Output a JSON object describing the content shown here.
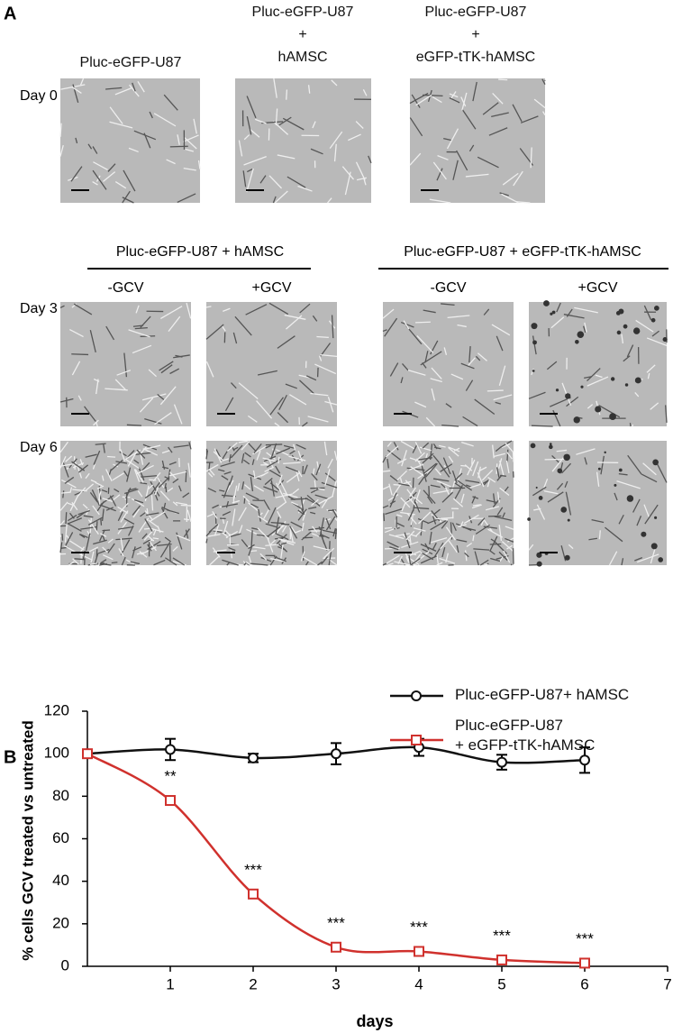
{
  "panel_a": {
    "label": "A",
    "column_headers": [
      "Pluc-eGFP-U87",
      "Pluc-eGFP-U87\n+\nhAMSC",
      "Pluc-eGFP-U87\n+\neGFP-tTK-hAMSC"
    ],
    "row0": "Day 0",
    "groups": [
      "Pluc-eGFP-U87 + hAMSC",
      "Pluc-eGFP-U87 + eGFP-tTK-hAMSC"
    ],
    "conditions": [
      "-GCV",
      "+GCV",
      "-GCV",
      "+GCV"
    ],
    "rows": [
      "Day 3",
      "Day 6"
    ]
  },
  "chart_data": {
    "type": "line",
    "panel_label": "B",
    "xlabel": "days",
    "ylabel": "% cells GCV treated vs untreated",
    "x": [
      0,
      1,
      2,
      3,
      4,
      5,
      6
    ],
    "series": [
      {
        "name": "Pluc-eGFP-U87+ hAMSC",
        "color": "#111111",
        "marker": "circle",
        "values": [
          100,
          102,
          98,
          100,
          103,
          96,
          97
        ],
        "errors": [
          0,
          5,
          2,
          5,
          4,
          3.5,
          6
        ]
      },
      {
        "name": "Pluc-eGFP-U87\n+ eGFP-tTK-hAMSC",
        "color": "#d0312d",
        "marker": "square",
        "values": [
          100,
          78,
          34,
          9,
          7,
          3,
          1.5
        ],
        "errors": [
          0,
          2,
          2,
          2,
          2,
          1,
          1
        ]
      }
    ],
    "annotations": [
      {
        "x": 1,
        "text": "**"
      },
      {
        "x": 2,
        "text": "***"
      },
      {
        "x": 3,
        "text": "***"
      },
      {
        "x": 4,
        "text": "***"
      },
      {
        "x": 5,
        "text": "***"
      },
      {
        "x": 6,
        "text": "***"
      }
    ],
    "xlim": [
      0,
      7
    ],
    "xticks": [
      1,
      2,
      3,
      4,
      5,
      6,
      7
    ],
    "ylim": [
      0,
      120
    ],
    "yticks": [
      0,
      20,
      40,
      60,
      80,
      100,
      120
    ],
    "smooth": true
  }
}
